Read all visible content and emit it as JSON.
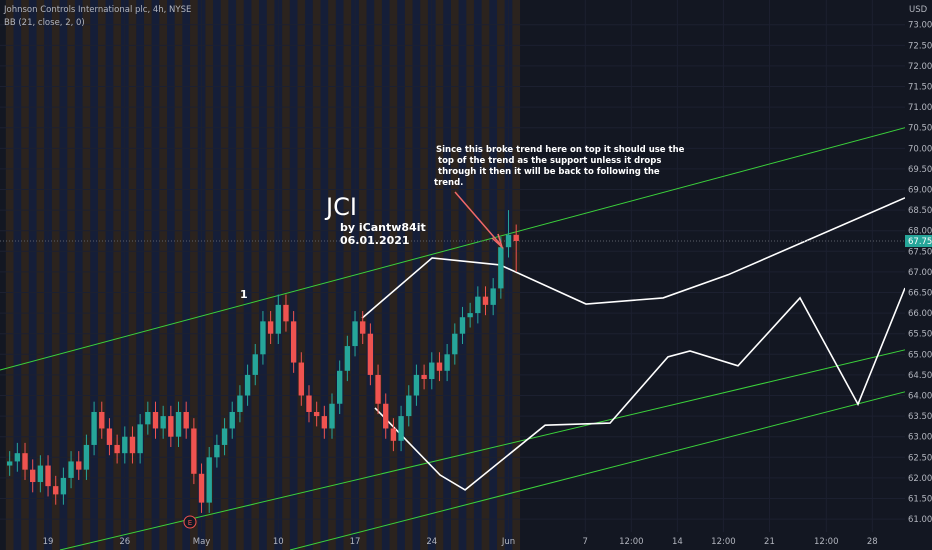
{
  "header": {
    "title": "Johnson Controls International plc, 4h, NYSE",
    "indicator": "BB (21, close, 2, 0)"
  },
  "chart_data": {
    "type": "candlestick",
    "currency": "USD",
    "x": [
      -2.5,
      -2,
      -1.5,
      -1,
      -0.5,
      0,
      0.5,
      1,
      1.5,
      2,
      2.5,
      3,
      3.5,
      4,
      4.5,
      5,
      5.5,
      6,
      6.5,
      7,
      7.5,
      8,
      8.5,
      9,
      9.5,
      10,
      10.5,
      11,
      11.5,
      12,
      12.5,
      13,
      13.5,
      14,
      14.5,
      15,
      15.5,
      16,
      16.5,
      17,
      17.5,
      18,
      18.5,
      19,
      19.5,
      20,
      20.5,
      21,
      21.5,
      22,
      22.5,
      23,
      23.5,
      24,
      24.5,
      25,
      25.5,
      26,
      26.5,
      27,
      27.5,
      28,
      28.5,
      29,
      29.5,
      30,
      30.5
    ],
    "open": [
      62.3,
      62.4,
      62.6,
      62.2,
      61.9,
      62.3,
      61.8,
      61.6,
      62.0,
      62.4,
      62.2,
      62.8,
      63.6,
      63.2,
      62.8,
      62.6,
      63.0,
      62.6,
      63.3,
      63.6,
      63.2,
      63.5,
      63.0,
      63.6,
      63.2,
      62.1,
      61.4,
      62.5,
      62.8,
      63.2,
      63.6,
      64.0,
      64.5,
      65.0,
      65.8,
      65.5,
      66.2,
      65.8,
      64.8,
      64.0,
      63.6,
      63.5,
      63.2,
      63.8,
      64.6,
      65.2,
      65.8,
      65.5,
      64.5,
      63.8,
      63.2,
      62.9,
      63.5,
      64.0,
      64.5,
      64.4,
      64.8,
      64.6,
      65.0,
      65.5,
      65.9,
      66.0,
      66.4,
      66.2,
      66.6,
      67.6,
      67.9
    ],
    "high": [
      62.65,
      62.85,
      62.85,
      62.45,
      62.55,
      62.55,
      62.05,
      62.25,
      62.65,
      62.65,
      63.05,
      63.85,
      63.85,
      63.45,
      63.05,
      63.25,
      63.25,
      63.55,
      63.85,
      63.85,
      63.75,
      63.75,
      63.85,
      63.85,
      63.45,
      62.35,
      62.75,
      63.05,
      63.45,
      63.85,
      64.25,
      64.75,
      65.25,
      66.05,
      66.05,
      66.45,
      66.45,
      66.05,
      65.05,
      64.25,
      63.85,
      63.75,
      64.05,
      64.85,
      65.45,
      66.05,
      66.05,
      65.75,
      64.75,
      64.05,
      63.45,
      63.75,
      64.25,
      64.75,
      64.75,
      65.05,
      65.05,
      65.25,
      65.75,
      66.15,
      66.25,
      66.65,
      66.65,
      66.85,
      67.85,
      68.5,
      68.15
    ],
    "low": [
      62.05,
      62.15,
      61.95,
      61.65,
      61.65,
      61.55,
      61.35,
      61.35,
      61.75,
      61.95,
      61.95,
      62.55,
      62.95,
      62.55,
      62.35,
      62.35,
      62.35,
      62.35,
      63.05,
      62.95,
      62.95,
      62.75,
      62.75,
      62.95,
      61.85,
      61.15,
      61.15,
      62.25,
      62.55,
      62.95,
      63.35,
      63.75,
      64.25,
      64.75,
      65.25,
      65.25,
      65.55,
      64.55,
      63.75,
      63.35,
      63.25,
      62.95,
      62.95,
      63.55,
      64.35,
      64.95,
      65.25,
      64.25,
      63.55,
      62.95,
      62.65,
      62.65,
      63.25,
      63.75,
      64.15,
      64.15,
      64.35,
      64.35,
      64.75,
      65.25,
      65.65,
      65.75,
      65.95,
      65.95,
      66.35,
      67.35,
      67.0
    ],
    "close": [
      62.4,
      62.6,
      62.2,
      61.9,
      62.3,
      61.8,
      61.6,
      62.0,
      62.4,
      62.2,
      62.8,
      63.6,
      63.2,
      62.8,
      62.6,
      63.0,
      62.6,
      63.3,
      63.6,
      63.2,
      63.5,
      63.0,
      63.6,
      63.2,
      62.1,
      61.4,
      62.5,
      62.8,
      63.2,
      63.6,
      64.0,
      64.5,
      65.0,
      65.8,
      65.5,
      66.2,
      65.8,
      64.8,
      64.0,
      63.6,
      63.5,
      63.2,
      63.8,
      64.6,
      65.2,
      65.8,
      65.5,
      64.5,
      63.8,
      63.2,
      62.9,
      63.5,
      64.0,
      64.5,
      64.4,
      64.8,
      64.6,
      65.0,
      65.5,
      65.9,
      66.0,
      66.4,
      66.2,
      66.6,
      67.6,
      67.9,
      67.75
    ],
    "up_color": "#26a69a",
    "down_color": "#ef5350",
    "xlim": [
      -3.13,
      55.83
    ],
    "xticks": [
      {
        "value": 0,
        "label": "19"
      },
      {
        "value": 5,
        "label": "26"
      },
      {
        "value": 10,
        "label": "May"
      },
      {
        "value": 15,
        "label": "10"
      },
      {
        "value": 20,
        "label": "17"
      },
      {
        "value": 25,
        "label": "24"
      },
      {
        "value": 30,
        "label": "Jun"
      },
      {
        "value": 35,
        "label": "7"
      },
      {
        "value": 38,
        "label": "12:00"
      },
      {
        "value": 41,
        "label": "14"
      },
      {
        "value": 44,
        "label": "12:00"
      },
      {
        "value": 47,
        "label": "21"
      },
      {
        "value": 50.7,
        "label": "12:00"
      },
      {
        "value": 53.7,
        "label": "28"
      }
    ],
    "ylim": [
      60.25,
      73.6
    ],
    "yticks": [
      {
        "value": 61,
        "label": "61.00"
      },
      {
        "value": 61.5,
        "label": "61.50"
      },
      {
        "value": 62,
        "label": "62.00"
      },
      {
        "value": 62.5,
        "label": "62.50"
      },
      {
        "value": 63,
        "label": "63.00"
      },
      {
        "value": 63.5,
        "label": "63.50"
      },
      {
        "value": 64,
        "label": "64.00"
      },
      {
        "value": 64.5,
        "label": "64.50"
      },
      {
        "value": 65,
        "label": "65.00"
      },
      {
        "value": 65.5,
        "label": "65.50"
      },
      {
        "value": 66,
        "label": "66.00"
      },
      {
        "value": 66.5,
        "label": "66.50"
      },
      {
        "value": 67,
        "label": "67.00"
      },
      {
        "value": 67.5,
        "label": "67.50"
      },
      {
        "value": 68,
        "label": "68.00"
      },
      {
        "value": 68.5,
        "label": "68.50"
      },
      {
        "value": 69,
        "label": "69.00"
      },
      {
        "value": 69.5,
        "label": "69.50"
      },
      {
        "value": 70,
        "label": "70.00"
      },
      {
        "value": 70.5,
        "label": "70.50"
      },
      {
        "value": 71,
        "label": "71.00"
      },
      {
        "value": 71.5,
        "label": "71.50"
      },
      {
        "value": 72,
        "label": "72.00"
      },
      {
        "value": 72.5,
        "label": "72.50"
      },
      {
        "value": 73,
        "label": "73.00"
      }
    ],
    "trend_color": "#3bd23b",
    "trend_lines": [
      {
        "x": [
          -3.13,
          55.83
        ],
        "y": [
          64.62,
          70.5
        ]
      },
      {
        "x": [
          0.78,
          55.83
        ],
        "y": [
          60.25,
          65.11
        ]
      },
      {
        "x": [
          15.77,
          55.83
        ],
        "y": [
          60.25,
          64.09
        ]
      }
    ],
    "projection_color": "#ffffff",
    "projections": [
      {
        "x": [
          20.46,
          25.02,
          29.45,
          35.05,
          40.07,
          44.3,
          55.83
        ],
        "y": [
          65.88,
          67.34,
          67.17,
          66.22,
          66.37,
          66.93,
          68.8
        ]
      },
      {
        "x": [
          21.3,
          25.54,
          27.17,
          32.38,
          36.61,
          40.39,
          41.82,
          44.95,
          48.99,
          52.77,
          55.83
        ],
        "y": [
          63.7,
          62.07,
          61.71,
          63.28,
          63.33,
          64.94,
          65.08,
          64.72,
          66.37,
          63.79,
          66.61
        ]
      }
    ],
    "annotations": {
      "title": "JCI",
      "author": "by iCantw84it",
      "date": "06.01.2021",
      "wave_label": "1",
      "earnings": "E",
      "note": [
        "Since this broke trend here on top it should use the",
        "top of the trend as the support unless it drops",
        "through it then it will be back to following the",
        "trend."
      ]
    }
  }
}
